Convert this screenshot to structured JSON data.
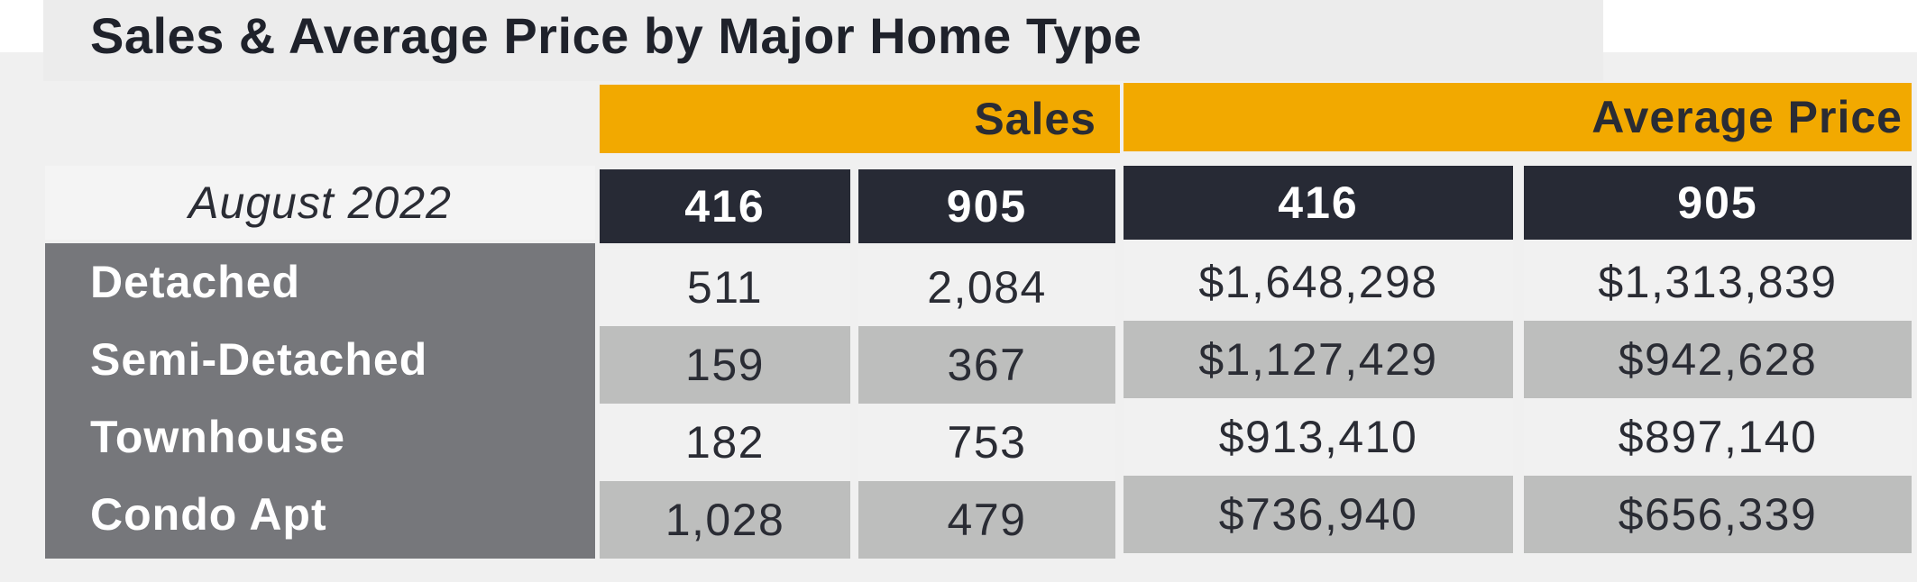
{
  "chart_data": {
    "type": "table",
    "title": "Sales & Average Price by Major Home Type",
    "period": "August 2022",
    "group_headers": [
      "Sales",
      "Average Price"
    ],
    "columns": [
      "416",
      "905",
      "416",
      "905"
    ],
    "rows": [
      {
        "label": "Detached",
        "values": [
          "511",
          "2,084",
          "$1,648,298",
          "$1,313,839"
        ]
      },
      {
        "label": "Semi-Detached",
        "values": [
          "159",
          "367",
          "$1,127,429",
          "$942,628"
        ]
      },
      {
        "label": "Townhouse",
        "values": [
          "182",
          "753",
          "$913,410",
          "$897,140"
        ]
      },
      {
        "label": "Condo Apt",
        "values": [
          "1,028",
          "479",
          "$736,940",
          "$656,339"
        ]
      }
    ]
  },
  "colors": {
    "gold": "#f2a900",
    "navy": "#272a35",
    "label_gray": "#76777b",
    "row_light": "#f1f1f1",
    "row_dark": "#bdbebd"
  }
}
